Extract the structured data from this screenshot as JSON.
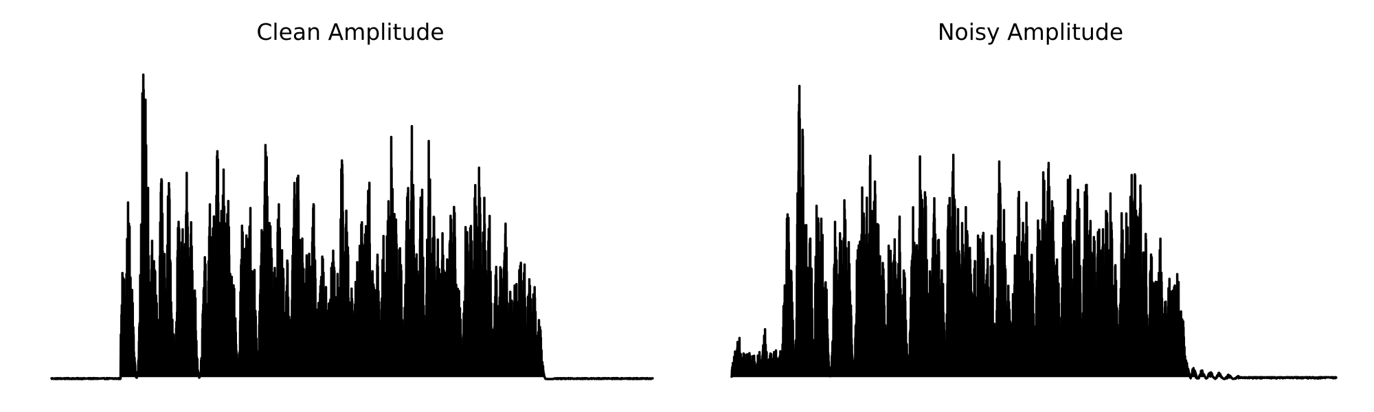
{
  "chart_data": [
    {
      "type": "line",
      "title": "Clean Amplitude",
      "xlabel": "",
      "ylabel": "",
      "xlim": [
        0,
        1
      ],
      "ylim": [
        0,
        1
      ],
      "grid": false,
      "axes_visible": false,
      "line_color": "#000000",
      "signal_range": [
        0.115,
        0.835
      ],
      "peaks": [
        [
          0.12,
          0.42
        ],
        [
          0.128,
          0.58
        ],
        [
          0.133,
          0.3
        ],
        [
          0.152,
          1.0
        ],
        [
          0.156,
          0.9
        ],
        [
          0.16,
          0.62
        ],
        [
          0.168,
          0.5
        ],
        [
          0.172,
          0.42
        ],
        [
          0.183,
          0.64
        ],
        [
          0.188,
          0.4
        ],
        [
          0.195,
          0.63
        ],
        [
          0.2,
          0.2
        ],
        [
          0.212,
          0.55
        ],
        [
          0.218,
          0.48
        ],
        [
          0.225,
          0.66
        ],
        [
          0.231,
          0.59
        ],
        [
          0.237,
          0.35
        ],
        [
          0.255,
          0.39
        ],
        [
          0.264,
          0.57
        ],
        [
          0.27,
          0.57
        ],
        [
          0.276,
          0.73
        ],
        [
          0.281,
          0.61
        ],
        [
          0.287,
          0.69
        ],
        [
          0.293,
          0.6
        ],
        [
          0.298,
          0.38
        ],
        [
          0.303,
          0.3
        ],
        [
          0.318,
          0.55
        ],
        [
          0.324,
          0.46
        ],
        [
          0.33,
          0.57
        ],
        [
          0.336,
          0.4
        ],
        [
          0.35,
          0.48
        ],
        [
          0.357,
          0.8
        ],
        [
          0.364,
          0.55
        ],
        [
          0.371,
          0.4
        ],
        [
          0.378,
          0.56
        ],
        [
          0.384,
          0.42
        ],
        [
          0.392,
          0.38
        ],
        [
          0.404,
          0.67
        ],
        [
          0.41,
          0.74
        ],
        [
          0.417,
          0.45
        ],
        [
          0.424,
          0.44
        ],
        [
          0.43,
          0.48
        ],
        [
          0.436,
          0.56
        ],
        [
          0.443,
          0.26
        ],
        [
          0.45,
          0.46
        ],
        [
          0.456,
          0.3
        ],
        [
          0.462,
          0.32
        ],
        [
          0.468,
          0.49
        ],
        [
          0.475,
          0.38
        ],
        [
          0.483,
          0.7
        ],
        [
          0.491,
          0.62
        ],
        [
          0.499,
          0.29
        ],
        [
          0.508,
          0.38
        ],
        [
          0.515,
          0.55
        ],
        [
          0.522,
          0.52
        ],
        [
          0.528,
          0.65
        ],
        [
          0.535,
          0.45
        ],
        [
          0.542,
          0.4
        ],
        [
          0.553,
          0.5
        ],
        [
          0.56,
          0.62
        ],
        [
          0.566,
          0.8
        ],
        [
          0.572,
          0.6
        ],
        [
          0.58,
          0.45
        ],
        [
          0.592,
          0.66
        ],
        [
          0.6,
          0.82
        ],
        [
          0.607,
          0.46
        ],
        [
          0.615,
          0.69
        ],
        [
          0.628,
          0.77
        ],
        [
          0.636,
          0.52
        ],
        [
          0.643,
          0.45
        ],
        [
          0.65,
          0.47
        ],
        [
          0.657,
          0.41
        ],
        [
          0.664,
          0.58
        ],
        [
          0.67,
          0.6
        ],
        [
          0.677,
          0.35
        ],
        [
          0.69,
          0.52
        ],
        [
          0.698,
          0.53
        ],
        [
          0.706,
          0.72
        ],
        [
          0.712,
          0.7
        ],
        [
          0.72,
          0.58
        ],
        [
          0.728,
          0.54
        ],
        [
          0.74,
          0.36
        ],
        [
          0.748,
          0.4
        ],
        [
          0.755,
          0.5
        ],
        [
          0.764,
          0.29
        ],
        [
          0.772,
          0.34
        ],
        [
          0.78,
          0.41
        ],
        [
          0.787,
          0.4
        ],
        [
          0.795,
          0.34
        ],
        [
          0.803,
          0.3
        ],
        [
          0.812,
          0.2
        ]
      ]
    },
    {
      "type": "line",
      "title": "Noisy Amplitude",
      "xlabel": "",
      "ylabel": "",
      "xlim": [
        0,
        1
      ],
      "ylim": [
        0,
        1
      ],
      "grid": false,
      "axes_visible": false,
      "line_color": "#000000",
      "signal_range": [
        0.0,
        0.84
      ],
      "peaks": [
        [
          0.005,
          0.09
        ],
        [
          0.012,
          0.15
        ],
        [
          0.02,
          0.09
        ],
        [
          0.028,
          0.1
        ],
        [
          0.036,
          0.08
        ],
        [
          0.045,
          0.09
        ],
        [
          0.055,
          0.16
        ],
        [
          0.064,
          0.09
        ],
        [
          0.072,
          0.1
        ],
        [
          0.08,
          0.09
        ],
        [
          0.088,
          0.3
        ],
        [
          0.093,
          0.58
        ],
        [
          0.098,
          0.4
        ],
        [
          0.112,
          1.0
        ],
        [
          0.117,
          0.8
        ],
        [
          0.124,
          0.5
        ],
        [
          0.13,
          0.45
        ],
        [
          0.142,
          0.62
        ],
        [
          0.148,
          0.6
        ],
        [
          0.155,
          0.35
        ],
        [
          0.172,
          0.53
        ],
        [
          0.18,
          0.48
        ],
        [
          0.187,
          0.58
        ],
        [
          0.194,
          0.44
        ],
        [
          0.21,
          0.57
        ],
        [
          0.217,
          0.65
        ],
        [
          0.224,
          0.62
        ],
        [
          0.23,
          0.73
        ],
        [
          0.236,
          0.67
        ],
        [
          0.243,
          0.58
        ],
        [
          0.25,
          0.4
        ],
        [
          0.262,
          0.54
        ],
        [
          0.27,
          0.45
        ],
        [
          0.278,
          0.52
        ],
        [
          0.285,
          0.37
        ],
        [
          0.3,
          0.55
        ],
        [
          0.306,
          0.43
        ],
        [
          0.313,
          0.8
        ],
        [
          0.32,
          0.6
        ],
        [
          0.328,
          0.4
        ],
        [
          0.335,
          0.58
        ],
        [
          0.342,
          0.45
        ],
        [
          0.348,
          0.35
        ],
        [
          0.36,
          0.66
        ],
        [
          0.367,
          0.72
        ],
        [
          0.374,
          0.55
        ],
        [
          0.381,
          0.5
        ],
        [
          0.388,
          0.56
        ],
        [
          0.394,
          0.42
        ],
        [
          0.402,
          0.38
        ],
        [
          0.409,
          0.51
        ],
        [
          0.416,
          0.47
        ],
        [
          0.423,
          0.39
        ],
        [
          0.43,
          0.46
        ],
        [
          0.443,
          0.7
        ],
        [
          0.451,
          0.55
        ],
        [
          0.458,
          0.3
        ],
        [
          0.468,
          0.4
        ],
        [
          0.475,
          0.6
        ],
        [
          0.482,
          0.5
        ],
        [
          0.488,
          0.63
        ],
        [
          0.496,
          0.4
        ],
        [
          0.508,
          0.55
        ],
        [
          0.516,
          0.67
        ],
        [
          0.523,
          0.8
        ],
        [
          0.53,
          0.65
        ],
        [
          0.538,
          0.45
        ],
        [
          0.55,
          0.6
        ],
        [
          0.558,
          0.78
        ],
        [
          0.566,
          0.45
        ],
        [
          0.573,
          0.65
        ],
        [
          0.586,
          0.75
        ],
        [
          0.593,
          0.55
        ],
        [
          0.6,
          0.47
        ],
        [
          0.607,
          0.5
        ],
        [
          0.614,
          0.48
        ],
        [
          0.62,
          0.55
        ],
        [
          0.627,
          0.6
        ],
        [
          0.634,
          0.4
        ],
        [
          0.646,
          0.55
        ],
        [
          0.654,
          0.6
        ],
        [
          0.661,
          0.73
        ],
        [
          0.668,
          0.7
        ],
        [
          0.676,
          0.62
        ],
        [
          0.684,
          0.58
        ],
        [
          0.694,
          0.4
        ],
        [
          0.702,
          0.38
        ],
        [
          0.709,
          0.45
        ],
        [
          0.716,
          0.3
        ],
        [
          0.724,
          0.34
        ],
        [
          0.731,
          0.4
        ],
        [
          0.738,
          0.35
        ],
        [
          0.745,
          0.25
        ],
        [
          0.752,
          0.06
        ],
        [
          0.764,
          0.035
        ],
        [
          0.778,
          0.03
        ],
        [
          0.792,
          0.025
        ],
        [
          0.806,
          0.02
        ],
        [
          0.822,
          0.015
        ],
        [
          0.838,
          0.01
        ]
      ]
    }
  ]
}
